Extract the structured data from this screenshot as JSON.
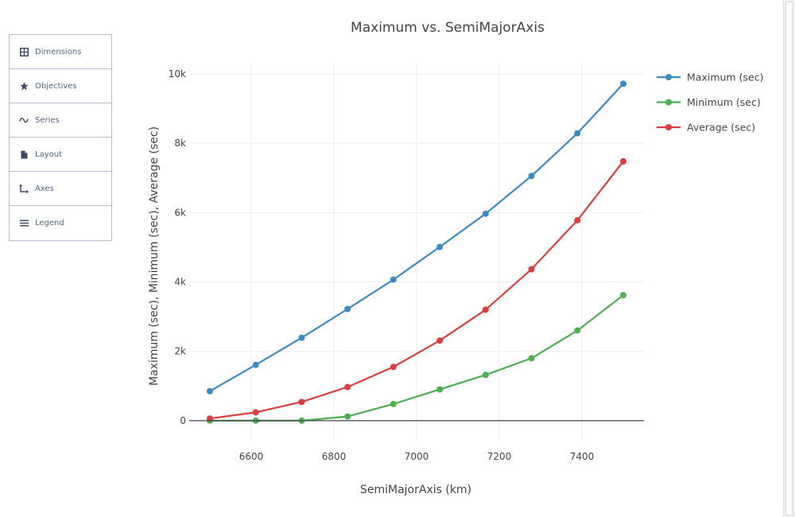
{
  "sidebar": {
    "items": [
      {
        "label": "Dimensions",
        "icon": "grid-icon"
      },
      {
        "label": "Objectives",
        "icon": "star-icon"
      },
      {
        "label": "Series",
        "icon": "wave-icon"
      },
      {
        "label": "Layout",
        "icon": "document-icon"
      },
      {
        "label": "Axes",
        "icon": "axes-icon"
      },
      {
        "label": "Legend",
        "icon": "list-icon"
      }
    ]
  },
  "chart_data": {
    "type": "line",
    "title": "Maximum vs. SemiMajorAxis",
    "xlabel": "SemiMajorAxis (km)",
    "ylabel": "Maximum (sec), Minimum (sec), Average (sec)",
    "xlim": [
      6450,
      7550
    ],
    "ylim": [
      -600,
      10300
    ],
    "x_ticks": [
      6600,
      6800,
      7000,
      7200,
      7400
    ],
    "y_ticks": [
      0,
      2000,
      4000,
      6000,
      8000,
      10000
    ],
    "y_tick_labels": [
      "0",
      "2k",
      "4k",
      "6k",
      "8k",
      "10k"
    ],
    "grid": true,
    "legend_position": "top-right",
    "x": [
      6500,
      6611,
      6722,
      6833,
      6944,
      7056,
      7167,
      7278,
      7389,
      7500
    ],
    "series": [
      {
        "name": "Maximum (sec)",
        "color": "#3b8bc2",
        "values": [
          850,
          1610,
          2390,
          3220,
          4070,
          5010,
          5970,
          7060,
          8290,
          9720
        ]
      },
      {
        "name": "Minimum (sec)",
        "color": "#4caf50",
        "values": [
          0,
          0,
          0,
          120,
          480,
          900,
          1320,
          1800,
          2600,
          3620
        ]
      },
      {
        "name": "Average (sec)",
        "color": "#dc3e3e",
        "values": [
          60,
          240,
          540,
          970,
          1550,
          2310,
          3200,
          4370,
          5780,
          7480
        ]
      }
    ]
  }
}
